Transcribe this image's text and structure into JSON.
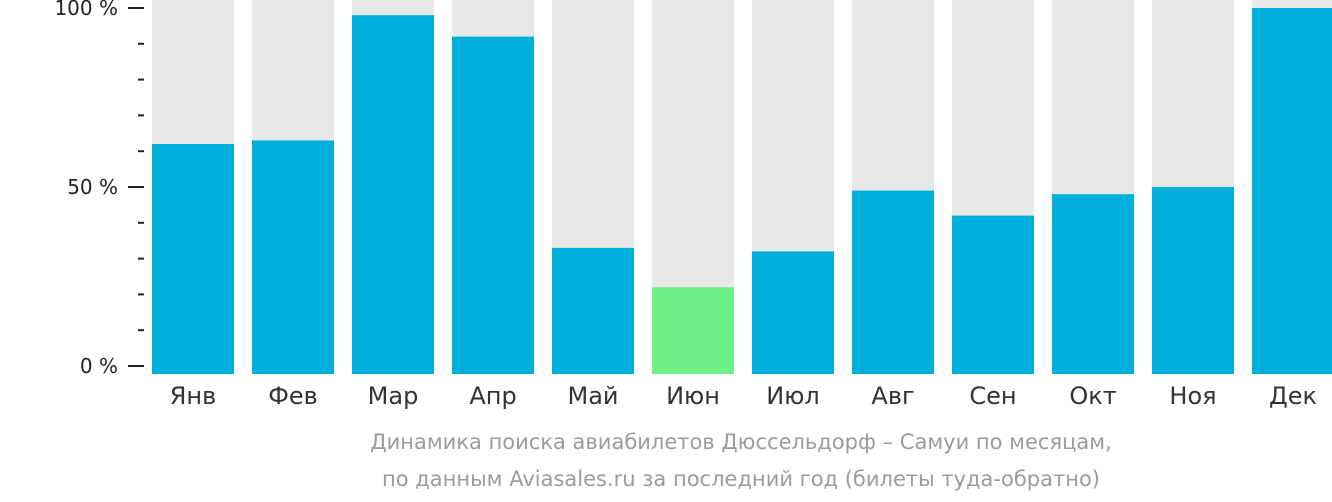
{
  "chart_data": {
    "type": "bar",
    "categories": [
      "Янв",
      "Фев",
      "Мар",
      "Апр",
      "Май",
      "Июн",
      "Июл",
      "Авг",
      "Сен",
      "Окт",
      "Ноя",
      "Дек"
    ],
    "values": [
      62,
      63,
      98,
      92,
      33,
      22,
      32,
      49,
      42,
      48,
      50,
      100
    ],
    "highlight_index": 5,
    "ylim": [
      0,
      100
    ],
    "yticks": [
      0,
      50,
      100
    ],
    "ytick_labels": [
      "0 %",
      "50 %",
      "100 %"
    ],
    "minor_ticks_per_major": 5,
    "caption_line1": "Динамика поиска авиабилетов Дюссельдорф – Самуи по месяцам,",
    "caption_line2": "по данным Aviasales.ru за последний год (билеты туда-обратно)",
    "colors": {
      "bar": "#00b0dc",
      "highlight": "#6cf287",
      "background_bar": "#e8e8e8",
      "axis": "#222222",
      "caption": "#9b9b9b"
    }
  }
}
